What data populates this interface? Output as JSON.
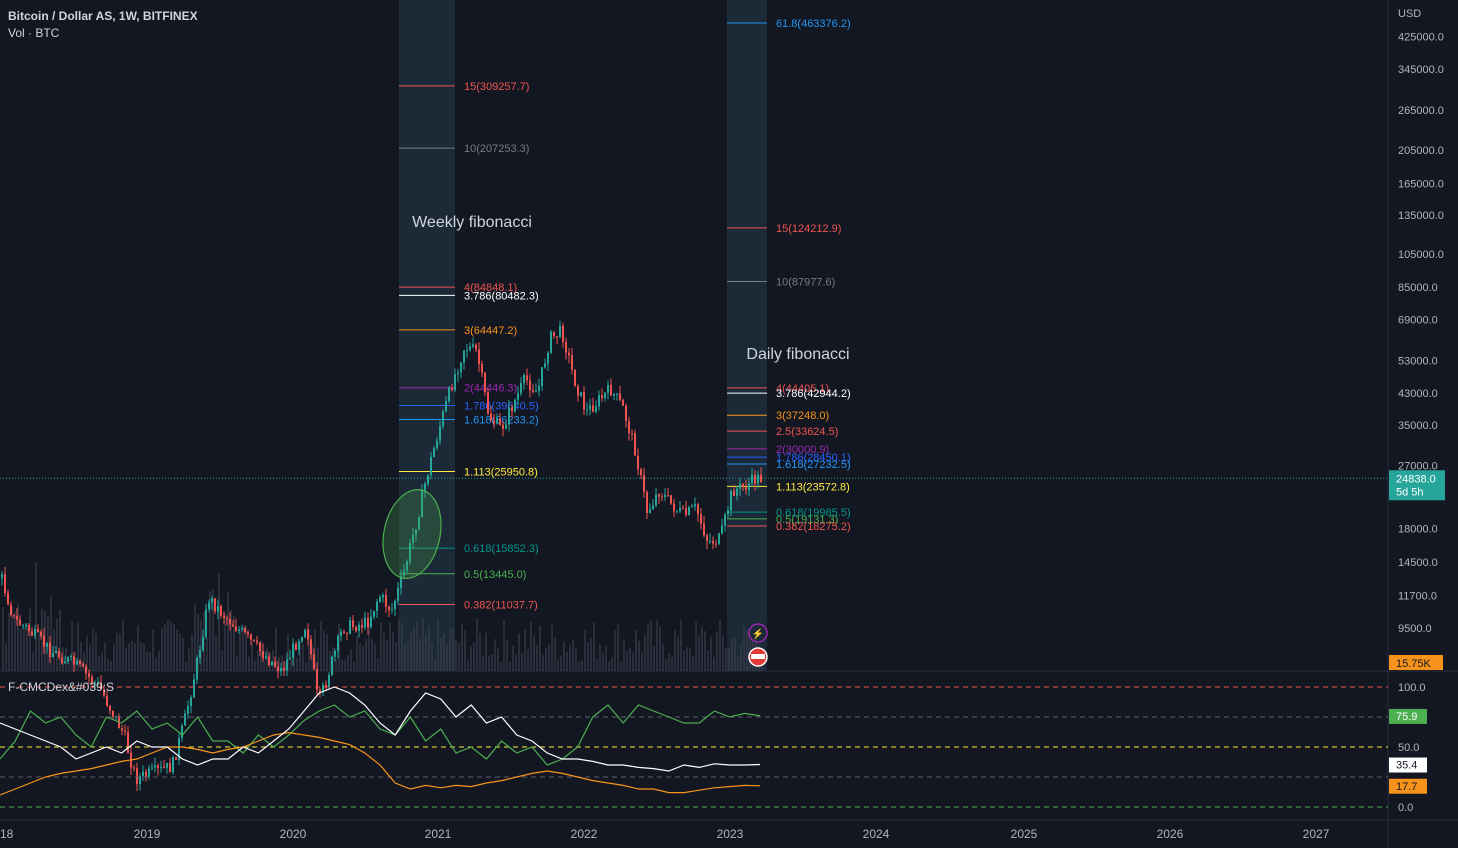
{
  "header": {
    "symbol": "Bitcoin / Dollar AS, 1W, BITFINEX",
    "volume": "Vol · BTC",
    "currency": "USD"
  },
  "indicator": {
    "name": "F-CMCDex&#039;S"
  },
  "colors": {
    "background": "#131722",
    "up": "#26a69a",
    "down": "#ef5350",
    "fib_zone": "#1f3140",
    "white": "#ffffff",
    "green": "#4caf50",
    "orange": "#f7931a"
  },
  "chart_data": {
    "type": "candlestick",
    "scale": "log",
    "x_axis": {
      "ticks": [
        "18",
        "2019",
        "2020",
        "2021",
        "2022",
        "2023",
        "2024",
        "2025",
        "2026",
        "2027"
      ]
    },
    "y_axis": {
      "ticks": [
        "425000.0",
        "345000.0",
        "265000.0",
        "205000.0",
        "165000.0",
        "135000.0",
        "105000.0",
        "85000.0",
        "69000.0",
        "53000.0",
        "43000.0",
        "35000.0",
        "27000.0",
        "18000.0",
        "14500.0",
        "11700.0",
        "9500.0"
      ]
    },
    "last_price": {
      "value": "24838.0",
      "countdown": "5d 5h"
    },
    "volume_last": "15.75K",
    "annotations": [
      "Weekly fibonacci",
      "Daily fibonacci"
    ],
    "price_path": [
      [
        "2018-01",
        13000
      ],
      [
        "2018-02",
        10000
      ],
      [
        "2018-03",
        9500
      ],
      [
        "2018-05",
        8200
      ],
      [
        "2018-07",
        7500
      ],
      [
        "2018-09",
        6500
      ],
      [
        "2018-11",
        4800
      ],
      [
        "2018-12",
        3600
      ],
      [
        "2019-03",
        3900
      ],
      [
        "2019-04",
        5200
      ],
      [
        "2019-05",
        7500
      ],
      [
        "2019-06",
        11500
      ],
      [
        "2019-07",
        10500
      ],
      [
        "2019-09",
        9000
      ],
      [
        "2019-10",
        8300
      ],
      [
        "2019-12",
        7200
      ],
      [
        "2020-02",
        9800
      ],
      [
        "2020-03",
        5800
      ],
      [
        "2020-05",
        9500
      ],
      [
        "2020-07",
        9800
      ],
      [
        "2020-08",
        11700
      ],
      [
        "2020-09",
        10600
      ],
      [
        "2020-10",
        13500
      ],
      [
        "2020-11",
        18500
      ],
      [
        "2020-12",
        26000
      ],
      [
        "2021-01",
        35000
      ],
      [
        "2021-02",
        46000
      ],
      [
        "2021-03",
        58000
      ],
      [
        "2021-04",
        56000
      ],
      [
        "2021-05",
        37000
      ],
      [
        "2021-06",
        34000
      ],
      [
        "2021-07",
        40000
      ],
      [
        "2021-08",
        47000
      ],
      [
        "2021-09",
        43000
      ],
      [
        "2021-10",
        61000
      ],
      [
        "2021-11",
        64000
      ],
      [
        "2021-12",
        47000
      ],
      [
        "2022-01",
        38000
      ],
      [
        "2022-03",
        44000
      ],
      [
        "2022-04",
        39000
      ],
      [
        "2022-05",
        30000
      ],
      [
        "2022-06",
        20000
      ],
      [
        "2022-07",
        23000
      ],
      [
        "2022-08",
        21000
      ],
      [
        "2022-09",
        19500
      ],
      [
        "2022-10",
        20500
      ],
      [
        "2022-11",
        16500
      ],
      [
        "2022-12",
        16800
      ],
      [
        "2023-01",
        23000
      ],
      [
        "2023-02",
        23500
      ],
      [
        "2023-03",
        24838
      ]
    ],
    "weekly_fib": [
      {
        "level": "15",
        "price": 309257.7,
        "label": "15(309257.7)",
        "color": "#ef5350"
      },
      {
        "level": "10",
        "price": 207253.3,
        "label": "10(207253.3)",
        "color": "#787b86"
      },
      {
        "level": "4",
        "price": 84848.1,
        "label": "4(84848.1)",
        "color": "#ef5350"
      },
      {
        "level": "3.786",
        "price": 80482.3,
        "label": "3.786(80482.3)",
        "color": "#ffffff"
      },
      {
        "level": "3",
        "price": 64447.2,
        "label": "3(64447.2)",
        "color": "#f7931a"
      },
      {
        "level": "2",
        "price": 44446.3,
        "label": "2(44446.3)",
        "color": "#9c27b0"
      },
      {
        "level": "1.786",
        "price": 39640.5,
        "label": "1.786(39640.5)",
        "color": "#2962ff"
      },
      {
        "level": "1.618",
        "price": 36233.2,
        "label": "1.618(36233.2)",
        "color": "#2196f3"
      },
      {
        "level": "1.113",
        "price": 25950.8,
        "label": "1.113(25950.8)",
        "color": "#ffeb3b"
      },
      {
        "level": "0.618",
        "price": 15852.3,
        "label": "0.618(15852.3)",
        "color": "#009688"
      },
      {
        "level": "0.5",
        "price": 13445.0,
        "label": "0.5(13445.0)",
        "color": "#4caf50"
      },
      {
        "level": "0.382",
        "price": 11037.7,
        "label": "0.382(11037.7)",
        "color": "#ef5350"
      }
    ],
    "daily_fib": [
      {
        "level": "61.8",
        "price": 463376.2,
        "label": "61.8(463376.2)",
        "color": "#2196f3"
      },
      {
        "level": "15",
        "price": 124212.9,
        "label": "15(124212.9)",
        "color": "#ef5350"
      },
      {
        "level": "10",
        "price": 87977.6,
        "label": "10(87977.6)",
        "color": "#787b86"
      },
      {
        "level": "4",
        "price": 44405.1,
        "label": "4(44405.1)",
        "color": "#ef5350"
      },
      {
        "level": "3.786",
        "price": 42944.2,
        "label": "3.786(42944.2)",
        "color": "#ffffff"
      },
      {
        "level": "3",
        "price": 37248.0,
        "label": "3(37248.0)",
        "color": "#f7931a"
      },
      {
        "level": "2.5",
        "price": 33624.5,
        "label": "2.5(33624.5)",
        "color": "#ef5350"
      },
      {
        "level": "2",
        "price": 30000.9,
        "label": "2(30000.9)",
        "color": "#9c27b0"
      },
      {
        "level": "1.786",
        "price": 28450.1,
        "label": "1.786(28450.1)",
        "color": "#2962ff"
      },
      {
        "level": "1.618",
        "price": 27232.5,
        "label": "1.618(27232.5)",
        "color": "#2196f3"
      },
      {
        "level": "1.113",
        "price": 23572.8,
        "label": "1.113(23572.8)",
        "color": "#ffeb3b"
      },
      {
        "level": "0.618",
        "price": 19985.5,
        "label": "0.618(19985.5)",
        "color": "#009688"
      },
      {
        "level": "0.5",
        "price": 19131.3,
        "label": "0.5(19131.3)",
        "color": "#4caf50"
      },
      {
        "level": "0.382",
        "price": 18275.2,
        "label": "0.382(18275.2)",
        "color": "#ef5350"
      }
    ],
    "oscillator": {
      "ticks": [
        "100.0",
        "50.0",
        "0.0"
      ],
      "last_values": {
        "green": "75.9",
        "white": "35.4",
        "orange": "17.7"
      },
      "green": [
        40,
        55,
        80,
        70,
        75,
        60,
        50,
        75,
        70,
        80,
        65,
        70,
        60,
        75,
        55,
        55,
        45,
        60,
        50,
        60,
        72,
        80,
        85,
        75,
        80,
        65,
        60,
        75,
        55,
        65,
        45,
        50,
        40,
        55,
        45,
        50,
        35,
        40,
        50,
        75,
        85,
        70,
        85,
        80,
        75,
        70,
        70,
        80,
        75,
        78,
        75.9
      ],
      "white": [
        70,
        65,
        60,
        55,
        50,
        40,
        45,
        50,
        45,
        55,
        50,
        50,
        40,
        35,
        40,
        40,
        50,
        45,
        55,
        65,
        80,
        95,
        100,
        95,
        85,
        70,
        60,
        80,
        95,
        90,
        75,
        85,
        70,
        75,
        60,
        55,
        45,
        40,
        40,
        38,
        35,
        35,
        33,
        32,
        30,
        35,
        33,
        36,
        35,
        35,
        35.4
      ],
      "orange": [
        10,
        15,
        20,
        25,
        28,
        30,
        32,
        35,
        38,
        40,
        45,
        50,
        50,
        48,
        45,
        48,
        50,
        55,
        60,
        62,
        60,
        58,
        55,
        52,
        45,
        35,
        20,
        15,
        18,
        16,
        18,
        17,
        20,
        22,
        25,
        28,
        30,
        28,
        25,
        22,
        20,
        18,
        15,
        15,
        12,
        12,
        14,
        16,
        17,
        18,
        17.7
      ]
    }
  }
}
